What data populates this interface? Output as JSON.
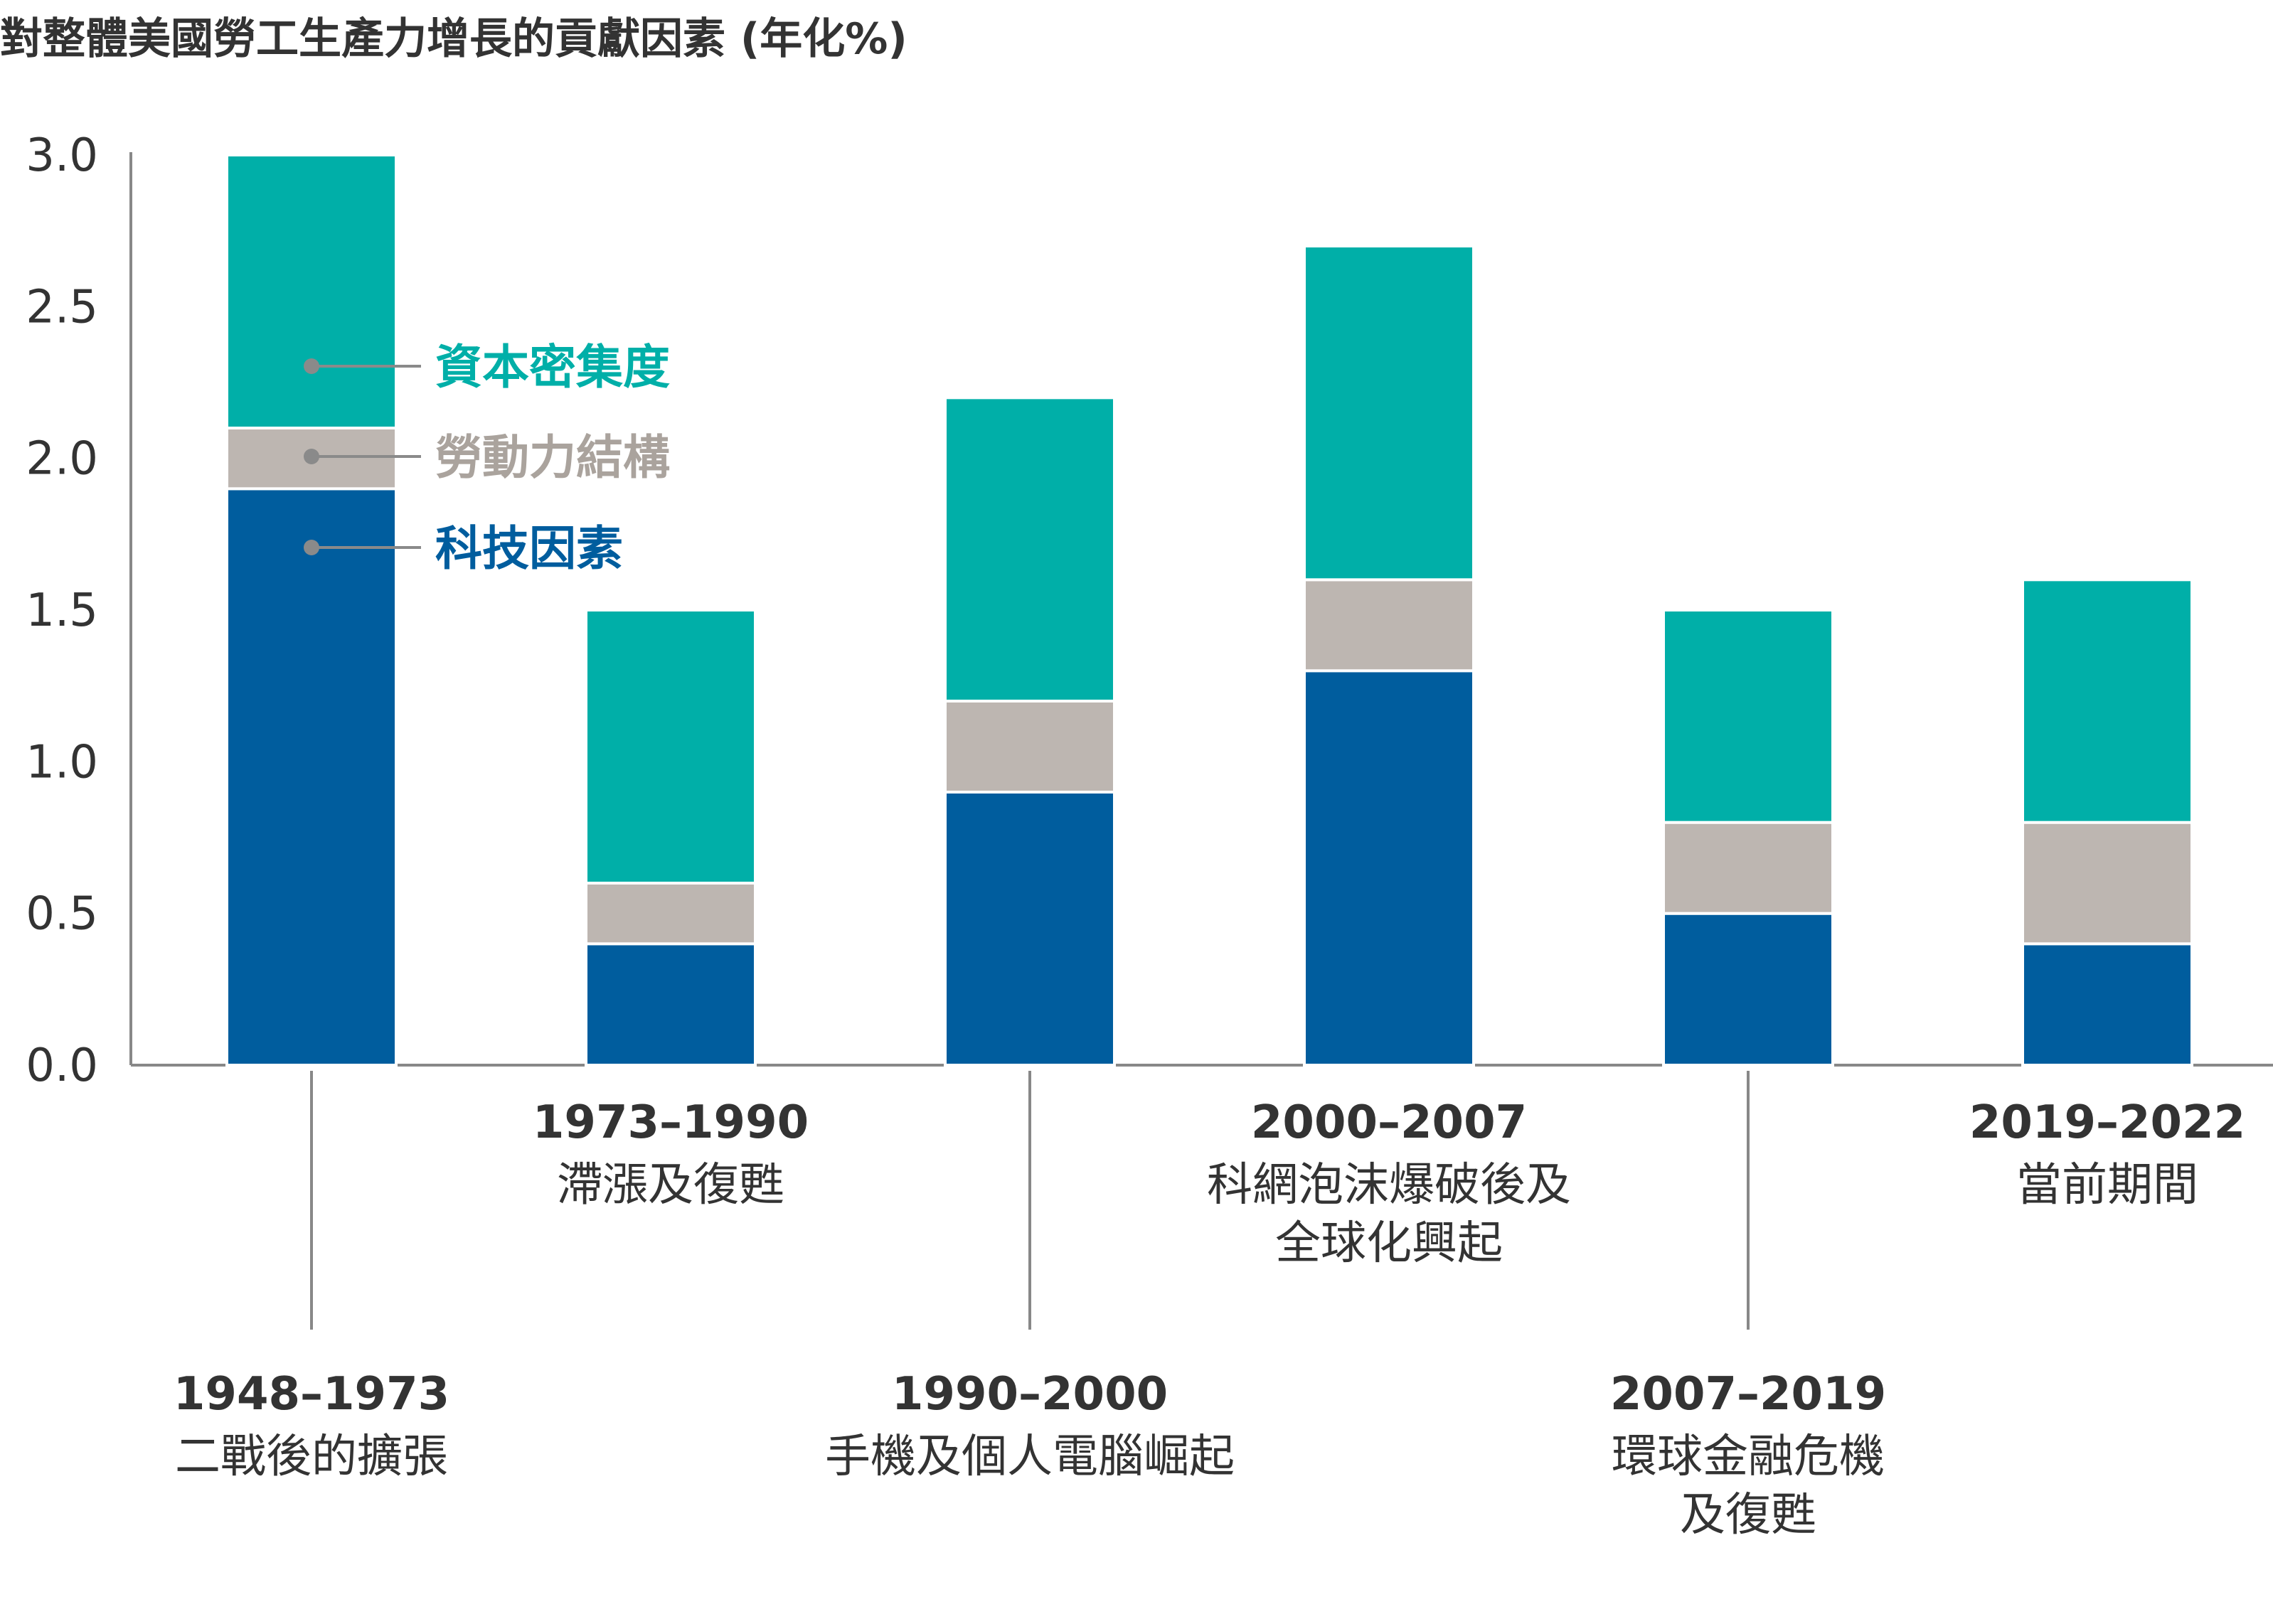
{
  "title": "對整體美國勞工生產力增長的貢獻因素 (年化%)",
  "colors": {
    "technology": "#005d9e",
    "labor": "#bdb6b1",
    "capital": "#00afa8",
    "axis": "#888888",
    "text": "#333333"
  },
  "chart_data": {
    "type": "bar",
    "stacked": true,
    "ylim": [
      0,
      3.0
    ],
    "yticks": [
      "0.0",
      "0.5",
      "1.0",
      "1.5",
      "2.0",
      "2.5",
      "3.0"
    ],
    "grid": false,
    "legend_placement": "inside, next to first bar",
    "categories": [
      {
        "range": "1948–1973",
        "desc": [
          "二戰後的擴張"
        ]
      },
      {
        "range": "1973–1990",
        "desc": [
          "滯漲及復甦"
        ]
      },
      {
        "range": "1990–2000",
        "desc": [
          "手機及個人電腦崛起"
        ]
      },
      {
        "range": "2000–2007",
        "desc": [
          "科網泡沫爆破後及",
          "全球化興起"
        ]
      },
      {
        "range": "2007–2019",
        "desc": [
          "環球金融危機",
          "及復甦"
        ]
      },
      {
        "range": "2019–2022",
        "desc": [
          "當前期間"
        ]
      }
    ],
    "series": [
      {
        "name": "科技因素",
        "color_key": "technology",
        "values": [
          1.9,
          0.4,
          0.9,
          1.3,
          0.5,
          0.4
        ]
      },
      {
        "name": "勞動力結構",
        "color_key": "labor",
        "values": [
          0.2,
          0.2,
          0.3,
          0.3,
          0.3,
          0.4
        ]
      },
      {
        "name": "資本密集度",
        "color_key": "capital",
        "values": [
          0.9,
          0.9,
          1.0,
          1.1,
          0.7,
          0.8
        ]
      }
    ],
    "legend": [
      "資本密集度",
      "勞動力結構",
      "科技因素"
    ]
  }
}
